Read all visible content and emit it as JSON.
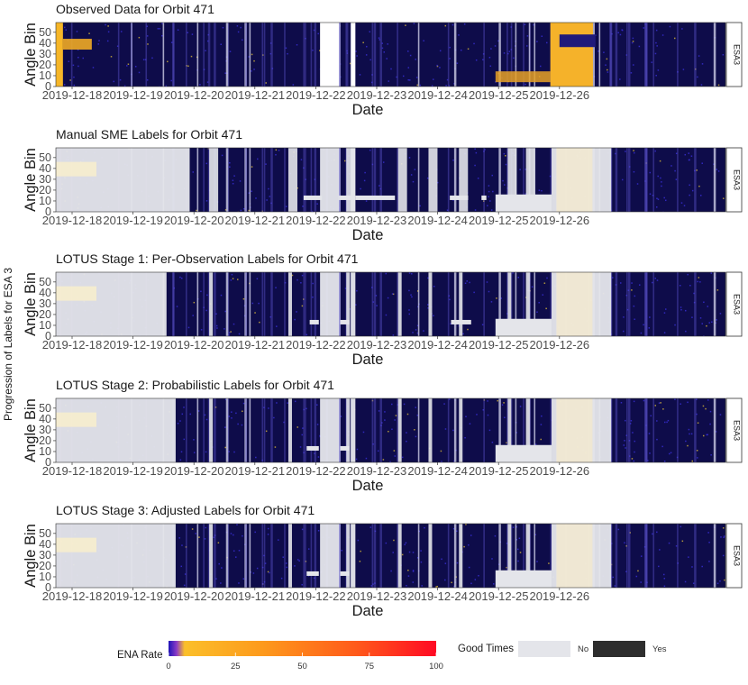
{
  "chart_data": {
    "type": "heatmap",
    "figure_ylabel": "Progression of Labels for ESA 3",
    "facet_label": "ESA3",
    "x_label": "Date",
    "y_label": "Angle Bin",
    "x_ticks": [
      "2019-12-18",
      "2019-12-19",
      "2019-12-20",
      "2019-12-21",
      "2019-12-22",
      "2019-12-23",
      "2019-12-24",
      "2019-12-25",
      "2019-12-26"
    ],
    "y_ticks": [
      0,
      10,
      20,
      30,
      40,
      50
    ],
    "ylim": [
      0,
      59
    ],
    "panels": [
      {
        "title": "Observed Data for Orbit 471",
        "kind": "observed",
        "good_times": [],
        "bad_notches": []
      },
      {
        "title": "Manual SME Labels for Orbit 471",
        "kind": "labels",
        "good_times": [
          [
            0.0,
            1.93
          ],
          [
            4.07,
            4.38
          ],
          [
            4.58,
            4.65
          ],
          [
            7.87,
            8.85
          ]
        ],
        "bad_notches": [
          [
            3.8,
            4.1
          ],
          [
            4.38,
            4.58
          ],
          [
            4.65,
            5.3
          ],
          [
            6.2,
            6.5
          ],
          [
            6.72,
            6.8
          ],
          [
            7.35,
            7.45
          ],
          [
            7.55,
            7.7
          ]
        ]
      },
      {
        "title": "LOTUS Stage 1: Per-Observation Labels for Orbit 471",
        "kind": "labels",
        "good_times": [
          [
            0.0,
            1.55
          ],
          [
            4.07,
            4.38
          ],
          [
            4.58,
            4.65
          ],
          [
            7.87,
            8.85
          ]
        ],
        "bad_notches": [
          [
            3.9,
            4.05
          ],
          [
            4.4,
            4.55
          ],
          [
            6.22,
            6.55
          ],
          [
            7.3,
            7.5
          ]
        ]
      },
      {
        "title": "LOTUS Stage 2: Probabilistic Labels for Orbit 471",
        "kind": "labels",
        "good_times": [
          [
            0.0,
            1.7
          ],
          [
            4.07,
            4.38
          ],
          [
            4.58,
            4.65
          ],
          [
            7.87,
            8.85
          ]
        ],
        "bad_notches": [
          [
            3.85,
            4.05
          ],
          [
            4.4,
            4.55
          ]
        ]
      },
      {
        "title": "LOTUS Stage 3: Adjusted Labels for Orbit 471",
        "kind": "labels",
        "good_times": [
          [
            0.0,
            1.7
          ],
          [
            4.07,
            4.38
          ],
          [
            4.58,
            4.65
          ],
          [
            7.87,
            8.85
          ]
        ],
        "bad_notches": [
          [
            3.85,
            4.05
          ],
          [
            4.4,
            4.55
          ]
        ]
      }
    ],
    "colorbar": {
      "title": "ENA Rate",
      "min": 0,
      "max": 100,
      "ticks": [
        0,
        25,
        50,
        75,
        100
      ],
      "colors": [
        "#1f13b8",
        "#6a2bd0",
        "#fbb72a",
        "#fe8a18",
        "#ff2b1a",
        "#ff0a20"
      ]
    },
    "fill_legend": {
      "title": "Good Times",
      "items": [
        {
          "label": "No",
          "color": "#e4e5ea"
        },
        {
          "label": "Yes",
          "color": "#2e2e2e"
        }
      ]
    }
  }
}
